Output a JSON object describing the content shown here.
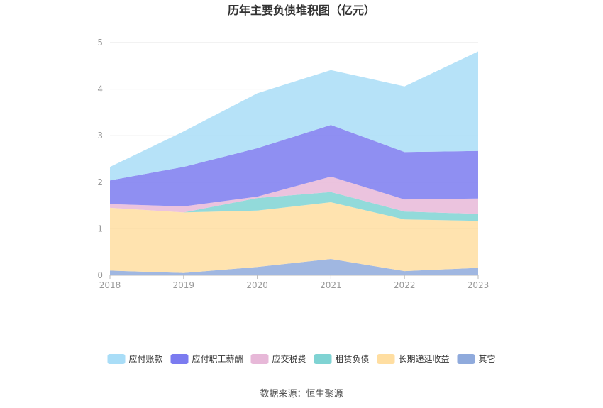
{
  "chart_data": {
    "type": "area",
    "stacked": true,
    "title": "历年主要负债堆积图（亿元）",
    "xlabel": "",
    "ylabel": "",
    "x": [
      "2018",
      "2019",
      "2020",
      "2021",
      "2022",
      "2023"
    ],
    "ylim": [
      0,
      5
    ],
    "yticks": [
      "0",
      "1",
      "2",
      "3",
      "4",
      "5"
    ],
    "grid": true,
    "legend_position": "bottom",
    "series": [
      {
        "name": "其它",
        "color": "#8FAADC",
        "values": [
          0.1,
          0.05,
          0.18,
          0.35,
          0.09,
          0.16
        ]
      },
      {
        "name": "长期递延收益",
        "color": "#FFDEA1",
        "values": [
          1.35,
          1.3,
          1.21,
          1.22,
          1.11,
          1.01
        ]
      },
      {
        "name": "租赁负债",
        "color": "#7FD3D3",
        "values": [
          0.0,
          0.0,
          0.27,
          0.22,
          0.17,
          0.15
        ]
      },
      {
        "name": "应交税费",
        "color": "#E7B8D8",
        "values": [
          0.08,
          0.13,
          0.03,
          0.33,
          0.26,
          0.33
        ]
      },
      {
        "name": "应付职工薪酬",
        "color": "#7B7BF0",
        "values": [
          0.51,
          0.85,
          1.04,
          1.11,
          1.02,
          1.02
        ]
      },
      {
        "name": "应付账款",
        "color": "#A9DDF7",
        "values": [
          0.29,
          0.76,
          1.18,
          1.18,
          1.41,
          2.14
        ]
      }
    ],
    "legend_order": [
      "应付账款",
      "应付职工薪酬",
      "应交税费",
      "租赁负债",
      "长期递延收益",
      "其它"
    ]
  },
  "source_text": "数据来源：恒生聚源"
}
